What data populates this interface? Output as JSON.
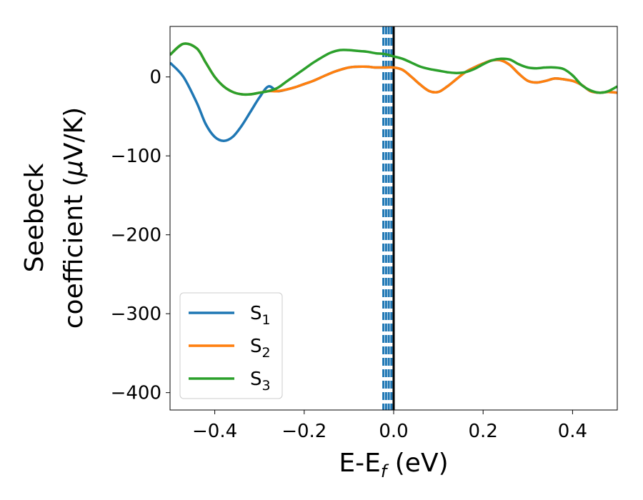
{
  "chart_data": {
    "type": "line",
    "xlabel": "E-E",
    "xlabel_sub": "f",
    "xlabel_unit": "(eV)",
    "ylabel_line1": "Seebeck",
    "ylabel_line2_pre": "coefficient  (",
    "ylabel_mu": "μ",
    "ylabel_line2_post": "V/K)",
    "xlim": [
      -0.5,
      0.5
    ],
    "ylim": [
      -422,
      64
    ],
    "xticks": [
      -0.4,
      -0.2,
      0.0,
      0.2,
      0.4
    ],
    "xtick_labels": [
      "−0.4",
      "−0.2",
      "0.0",
      "0.2",
      "0.4"
    ],
    "yticks": [
      0,
      -100,
      -200,
      -300,
      -400
    ],
    "ytick_labels": [
      "0",
      "−100",
      "−200",
      "−300",
      "−400"
    ],
    "grid": false,
    "legend_position": "lower-left",
    "vertical_lines": [
      {
        "x": 0.0,
        "style": "solid",
        "color": "#000000"
      },
      {
        "x": -0.005,
        "style": "dashed",
        "color": "#1f77b4"
      },
      {
        "x": -0.011,
        "style": "dashed",
        "color": "#1f77b4"
      },
      {
        "x": -0.017,
        "style": "dashed",
        "color": "#1f77b4"
      },
      {
        "x": -0.023,
        "style": "dashed",
        "color": "#1f77b4"
      }
    ],
    "series": [
      {
        "name": "S",
        "sub": "1",
        "color": "#1f77b4",
        "x": [
          -0.5,
          -0.47,
          -0.44,
          -0.42,
          -0.4,
          -0.38,
          -0.36,
          -0.34,
          -0.32,
          -0.3,
          -0.28,
          -0.26,
          -0.24,
          -0.22,
          -0.2,
          -0.18,
          -0.16,
          -0.14,
          -0.12,
          -0.1,
          -0.08,
          -0.06,
          -0.04,
          -0.02,
          0.0,
          0.02,
          0.04,
          0.06,
          0.08,
          0.1,
          0.12,
          0.14,
          0.16,
          0.18,
          0.2,
          0.22,
          0.24,
          0.26,
          0.28,
          0.3,
          0.32,
          0.34,
          0.36,
          0.38,
          0.4,
          0.42,
          0.44,
          0.46,
          0.48,
          0.5
        ],
        "y": [
          18,
          0,
          -33,
          -60,
          -76,
          -81,
          -76,
          -62,
          -44,
          -26,
          -12,
          -18,
          -16,
          -13,
          -9,
          -5,
          0,
          5,
          9,
          12,
          13,
          13,
          12,
          12,
          12,
          9,
          0,
          -10,
          -18,
          -19,
          -12,
          -3,
          6,
          12,
          17,
          21,
          21,
          15,
          4,
          -5,
          -7,
          -5,
          -2,
          -3,
          -5,
          -10,
          -18,
          -20,
          -19,
          -20
        ]
      },
      {
        "name": "S",
        "sub": "2",
        "color": "#ff7f0e",
        "x": [
          -0.5,
          -0.47,
          -0.44,
          -0.42,
          -0.4,
          -0.38,
          -0.36,
          -0.34,
          -0.32,
          -0.3,
          -0.28,
          -0.26,
          -0.24,
          -0.22,
          -0.2,
          -0.18,
          -0.16,
          -0.14,
          -0.12,
          -0.1,
          -0.08,
          -0.06,
          -0.04,
          -0.02,
          0.0,
          0.02,
          0.04,
          0.06,
          0.08,
          0.1,
          0.12,
          0.14,
          0.16,
          0.18,
          0.2,
          0.22,
          0.24,
          0.26,
          0.28,
          0.3,
          0.32,
          0.34,
          0.36,
          0.38,
          0.4,
          0.42,
          0.44,
          0.46,
          0.48,
          0.5
        ],
        "y": [
          28,
          42,
          36,
          18,
          0,
          -12,
          -19,
          -22,
          -22,
          -20,
          -18,
          -18,
          -16,
          -13,
          -9,
          -5,
          0,
          5,
          9,
          12,
          13,
          13,
          12,
          12,
          12,
          9,
          0,
          -10,
          -18,
          -19,
          -12,
          -3,
          6,
          12,
          17,
          21,
          21,
          15,
          4,
          -5,
          -7,
          -5,
          -2,
          -3,
          -5,
          -10,
          -18,
          -20,
          -19,
          -20
        ]
      },
      {
        "name": "S",
        "sub": "3",
        "color": "#2ca02c",
        "x": [
          -0.5,
          -0.47,
          -0.44,
          -0.42,
          -0.4,
          -0.38,
          -0.36,
          -0.34,
          -0.32,
          -0.3,
          -0.28,
          -0.26,
          -0.24,
          -0.22,
          -0.2,
          -0.18,
          -0.16,
          -0.14,
          -0.12,
          -0.1,
          -0.08,
          -0.06,
          -0.04,
          -0.02,
          0.0,
          0.02,
          0.04,
          0.06,
          0.08,
          0.1,
          0.12,
          0.14,
          0.16,
          0.18,
          0.2,
          0.22,
          0.24,
          0.26,
          0.28,
          0.3,
          0.32,
          0.34,
          0.36,
          0.38,
          0.4,
          0.42,
          0.44,
          0.46,
          0.48,
          0.5
        ],
        "y": [
          28,
          42,
          36,
          18,
          0,
          -12,
          -19,
          -22,
          -22,
          -20,
          -18,
          -14,
          -6,
          2,
          10,
          18,
          25,
          31,
          34,
          34,
          33,
          32,
          30,
          29,
          26,
          23,
          18,
          13,
          10,
          8,
          6,
          5,
          6,
          10,
          16,
          21,
          23,
          22,
          16,
          12,
          11,
          12,
          12,
          10,
          2,
          -10,
          -17,
          -20,
          -18,
          -12
        ]
      }
    ]
  }
}
